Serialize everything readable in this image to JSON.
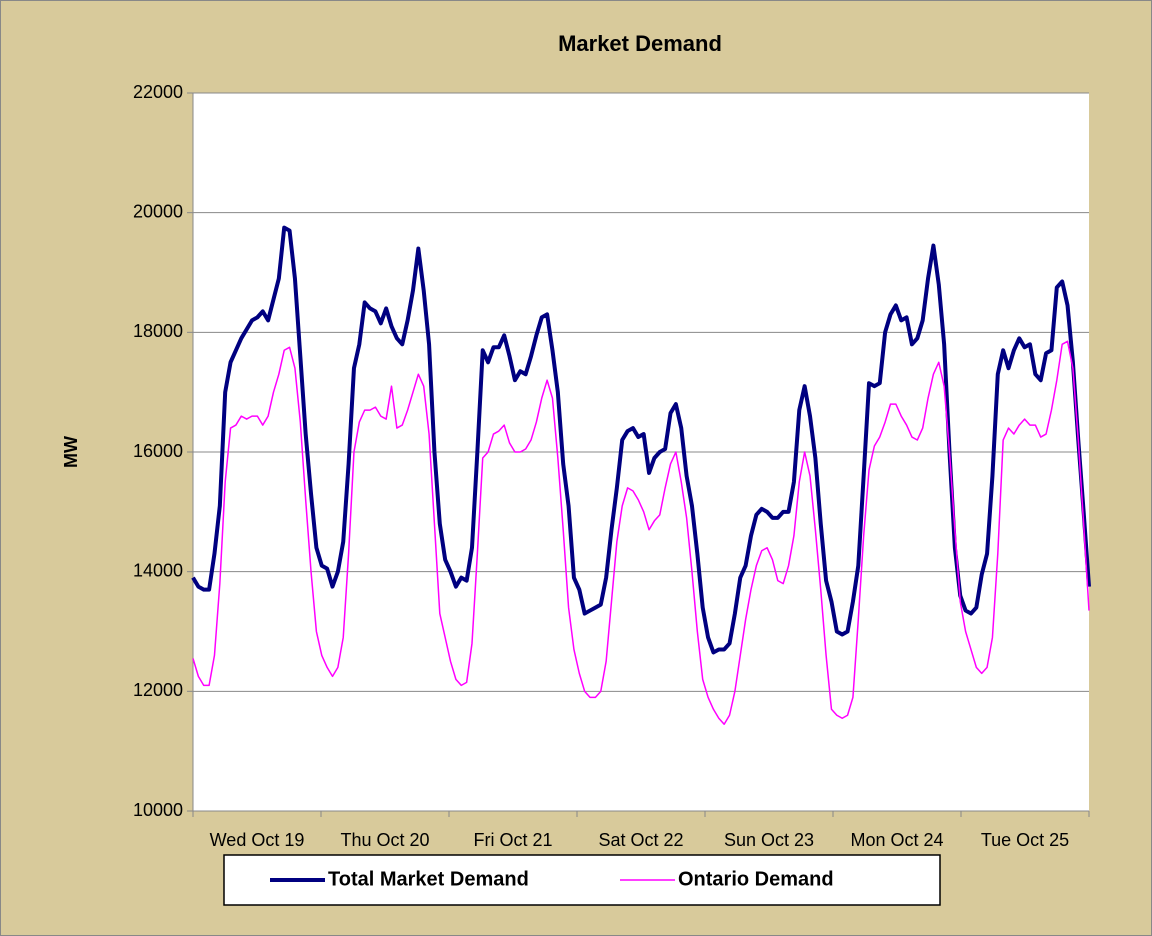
{
  "chart_data": {
    "type": "line",
    "title": "Market Demand",
    "y_label": "MW",
    "categories": [
      "Wed Oct 19",
      null,
      null,
      null,
      null,
      null,
      null,
      null,
      null,
      null,
      null,
      null,
      null,
      null,
      null,
      null,
      null,
      null,
      null,
      null,
      null,
      null,
      null,
      null,
      "Thu Oct 20",
      null,
      null,
      null,
      null,
      null,
      null,
      null,
      null,
      null,
      null,
      null,
      null,
      null,
      null,
      null,
      null,
      null,
      null,
      null,
      null,
      null,
      null,
      null,
      "Fri Oct 21",
      null,
      null,
      null,
      null,
      null,
      null,
      null,
      null,
      null,
      null,
      null,
      null,
      null,
      null,
      null,
      null,
      null,
      null,
      null,
      null,
      null,
      null,
      null,
      "Sat Oct 22",
      null,
      null,
      null,
      null,
      null,
      null,
      null,
      null,
      null,
      null,
      null,
      null,
      null,
      null,
      null,
      null,
      null,
      null,
      null,
      null,
      null,
      null,
      null,
      "Sun Oct 23",
      null,
      null,
      null,
      null,
      null,
      null,
      null,
      null,
      null,
      null,
      null,
      null,
      null,
      null,
      null,
      null,
      null,
      null,
      null,
      null,
      null,
      null,
      null,
      "Mon Oct 24",
      null,
      null,
      null,
      null,
      null,
      null,
      null,
      null,
      null,
      null,
      null,
      null,
      null,
      null,
      null,
      null,
      null,
      null,
      null,
      null,
      null,
      null,
      null,
      "Tue Oct 25",
      null,
      null,
      null,
      null,
      null,
      null,
      null,
      null,
      null,
      null,
      null,
      null,
      null,
      null,
      null,
      null,
      null,
      null,
      null,
      null,
      null,
      null,
      null
    ],
    "series": [
      {
        "name": "Total Market Demand",
        "color": "#000080",
        "width": 4,
        "values": [
          13900,
          13750,
          13700,
          13700,
          14300,
          15100,
          17000,
          17500,
          17700,
          17900,
          18050,
          18200,
          18250,
          18350,
          18200,
          18550,
          18900,
          19750,
          19700,
          18900,
          17600,
          16300,
          15300,
          14400,
          14100,
          14050,
          13750,
          14000,
          14500,
          15800,
          17400,
          17800,
          18500,
          18400,
          18350,
          18150,
          18400,
          18100,
          17900,
          17800,
          18200,
          18700,
          19400,
          18700,
          17800,
          16000,
          14800,
          14200,
          14000,
          13750,
          13900,
          13850,
          14400,
          16000,
          17700,
          17500,
          17750,
          17750,
          17950,
          17600,
          17200,
          17350,
          17300,
          17600,
          17950,
          18250,
          18300,
          17700,
          17000,
          15800,
          15100,
          13900,
          13700,
          13300,
          13350,
          13400,
          13450,
          13900,
          14700,
          15400,
          16200,
          16350,
          16400,
          16250,
          16300,
          15650,
          15900,
          16000,
          16050,
          16650,
          16800,
          16400,
          15600,
          15100,
          14300,
          13400,
          12900,
          12650,
          12700,
          12700,
          12800,
          13300,
          13900,
          14100,
          14600,
          14950,
          15050,
          15000,
          14900,
          14900,
          15000,
          15000,
          15500,
          16700,
          17100,
          16600,
          15900,
          14800,
          13850,
          13500,
          13000,
          12950,
          13000,
          13500,
          14100,
          15600,
          17150,
          17100,
          17150,
          18000,
          18300,
          18450,
          18200,
          18250,
          17800,
          17900,
          18200,
          18900,
          19450,
          18800,
          17800,
          16000,
          14400,
          13600,
          13350,
          13300,
          13400,
          13950,
          14300,
          15600,
          17300,
          17700,
          17400,
          17700,
          17900,
          17750,
          17800,
          17300,
          17200,
          17650,
          17700,
          18750,
          18850,
          18450,
          17500,
          16200,
          15000,
          13750
        ]
      },
      {
        "name": "Ontario Demand",
        "color": "#ff00ff",
        "width": 1.5,
        "values": [
          12550,
          12250,
          12100,
          12100,
          12600,
          13800,
          15500,
          16400,
          16450,
          16600,
          16550,
          16600,
          16600,
          16450,
          16600,
          17000,
          17300,
          17700,
          17750,
          17400,
          16500,
          15200,
          14000,
          13000,
          12600,
          12400,
          12250,
          12400,
          12900,
          14300,
          16000,
          16500,
          16700,
          16700,
          16750,
          16600,
          16550,
          17100,
          16400,
          16450,
          16700,
          17000,
          17300,
          17100,
          16300,
          14800,
          13300,
          12900,
          12500,
          12200,
          12100,
          12150,
          12800,
          14300,
          15900,
          16000,
          16300,
          16350,
          16450,
          16150,
          16000,
          16000,
          16050,
          16200,
          16500,
          16900,
          17200,
          16900,
          15900,
          14700,
          13400,
          12700,
          12300,
          12000,
          11900,
          11900,
          12000,
          12500,
          13500,
          14500,
          15100,
          15400,
          15350,
          15200,
          15000,
          14700,
          14850,
          14950,
          15400,
          15800,
          16000,
          15500,
          14900,
          14000,
          13000,
          12200,
          11900,
          11700,
          11550,
          11450,
          11600,
          12000,
          12600,
          13200,
          13700,
          14100,
          14350,
          14400,
          14200,
          13850,
          13800,
          14100,
          14600,
          15500,
          16000,
          15600,
          14700,
          13700,
          12600,
          11700,
          11600,
          11550,
          11600,
          11900,
          13200,
          14600,
          15700,
          16100,
          16250,
          16500,
          16800,
          16800,
          16600,
          16450,
          16250,
          16200,
          16400,
          16900,
          17300,
          17500,
          17100,
          16000,
          14700,
          13500,
          13000,
          12700,
          12400,
          12300,
          12400,
          12900,
          14300,
          16200,
          16400,
          16300,
          16450,
          16550,
          16450,
          16450,
          16250,
          16300,
          16700,
          17200,
          17800,
          17850,
          17400,
          16200,
          14800,
          13350
        ]
      }
    ],
    "ylim": [
      10000,
      22000
    ],
    "yticks": [
      10000,
      12000,
      14000,
      16000,
      18000,
      20000,
      22000
    ],
    "grid": true,
    "legend": "bottom"
  }
}
